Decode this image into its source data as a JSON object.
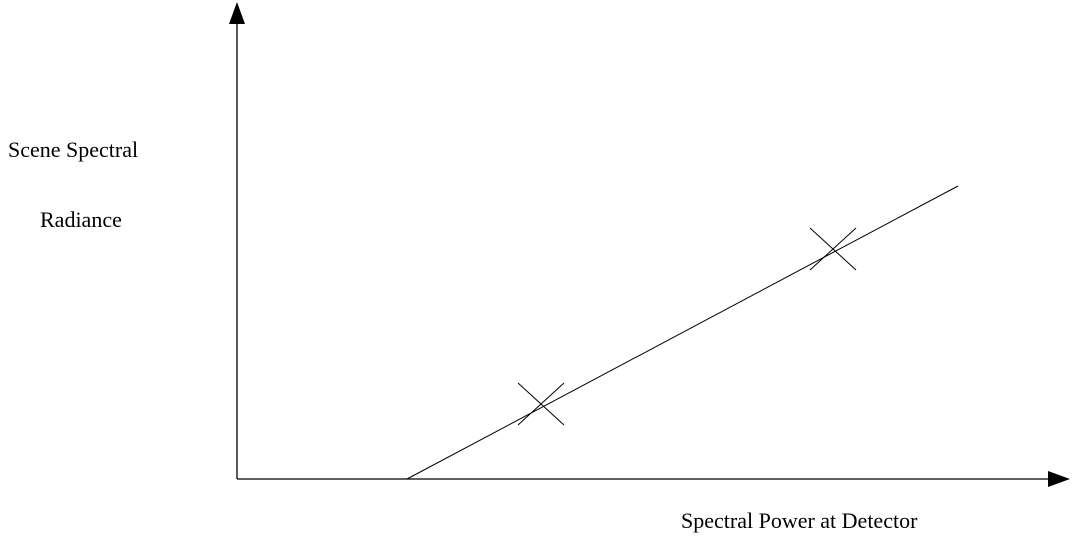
{
  "labels": {
    "y_axis": [
      "Scene Spectral",
      "Radiance"
    ],
    "x_axis": "Spectral Power at Detector"
  },
  "colors": {
    "stroke": "#000000",
    "background": "#ffffff"
  },
  "marks": {
    "calibration_points": 2,
    "marker_shape": "x-cross"
  }
}
